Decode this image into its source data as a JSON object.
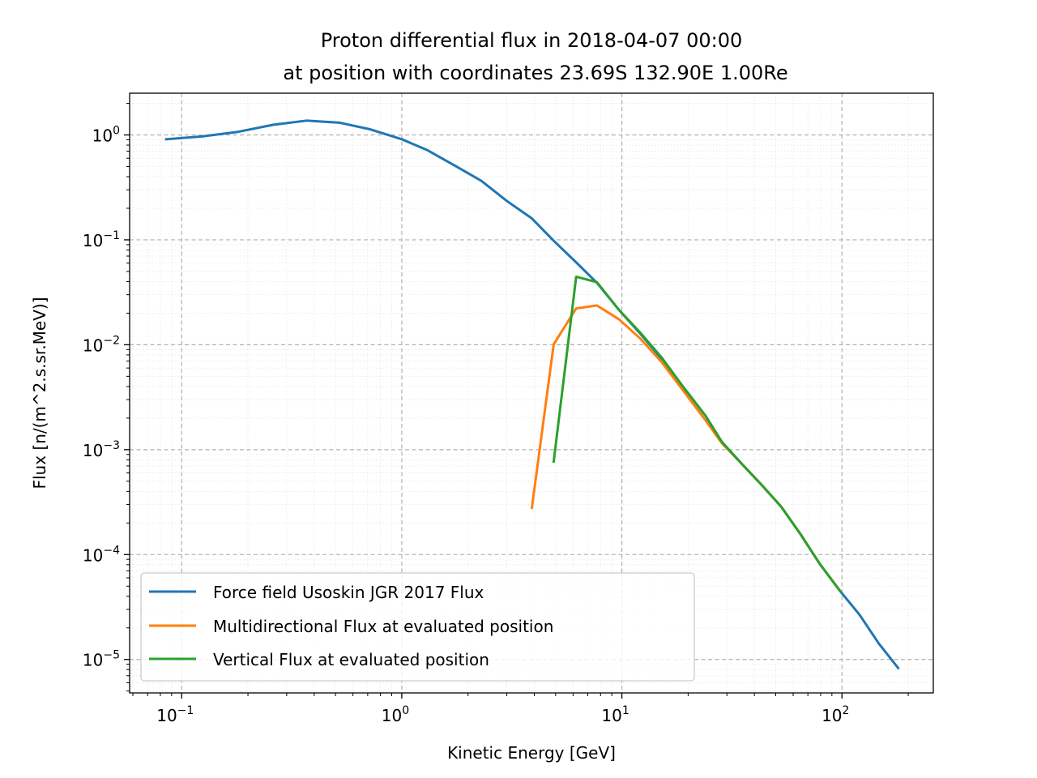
{
  "chart_data": {
    "type": "line",
    "title_lines": [
      "Proton differential flux in 2018-04-07 00:00",
      "at position with coordinates 23.69S 132.90E 1.00Re"
    ],
    "xlabel": "Kinetic Energy [GeV]",
    "ylabel": "Flux [n/(m^2.s.sr.MeV)]",
    "xscale": "log",
    "yscale": "log",
    "xlim": [
      0.058,
      260
    ],
    "ylim": [
      4.8e-06,
      2.5
    ],
    "x_ticks": [
      {
        "value": 0.1,
        "base": "10",
        "exp": "−1"
      },
      {
        "value": 1,
        "base": "10",
        "exp": "0"
      },
      {
        "value": 10,
        "base": "10",
        "exp": "1"
      },
      {
        "value": 100,
        "base": "10",
        "exp": "2"
      }
    ],
    "y_ticks": [
      {
        "value": 1,
        "base": "10",
        "exp": "0"
      },
      {
        "value": 0.1,
        "base": "10",
        "exp": "−1"
      },
      {
        "value": 0.01,
        "base": "10",
        "exp": "−2"
      },
      {
        "value": 0.001,
        "base": "10",
        "exp": "−3"
      },
      {
        "value": 0.0001,
        "base": "10",
        "exp": "−4"
      },
      {
        "value": 1e-05,
        "base": "10",
        "exp": "−5"
      }
    ],
    "grid": true,
    "legend_position": "lower-left",
    "series": [
      {
        "name": "Force field Usoskin JGR 2017 Flux",
        "color": "#1f77b4",
        "points": [
          [
            0.085,
            0.91
          ],
          [
            0.125,
            0.97
          ],
          [
            0.18,
            1.07
          ],
          [
            0.26,
            1.25
          ],
          [
            0.37,
            1.37
          ],
          [
            0.52,
            1.31
          ],
          [
            0.72,
            1.13
          ],
          [
            1.0,
            0.91
          ],
          [
            1.3,
            0.72
          ],
          [
            1.8,
            0.49
          ],
          [
            2.3,
            0.365
          ],
          [
            3.0,
            0.235
          ],
          [
            3.9,
            0.16
          ],
          [
            4.9,
            0.098
          ],
          [
            6.2,
            0.061
          ],
          [
            7.7,
            0.039
          ],
          [
            9.7,
            0.0215
          ],
          [
            12.1,
            0.0128
          ],
          [
            15.2,
            0.0073
          ],
          [
            19.1,
            0.0039
          ],
          [
            24.0,
            0.0021
          ],
          [
            28.5,
            0.00118
          ],
          [
            35.1,
            0.00073
          ],
          [
            43.2,
            0.00046
          ],
          [
            53.0,
            0.000285
          ],
          [
            65.0,
            0.000155
          ],
          [
            79.5,
            8.08e-05
          ],
          [
            98.0,
            4.5e-05
          ],
          [
            120.0,
            2.68e-05
          ],
          [
            147.0,
            1.42e-05
          ],
          [
            180.0,
            8.3e-06
          ]
        ]
      },
      {
        "name": "Multidirectional Flux at evaluated position",
        "color": "#ff7f0e",
        "points": [
          [
            3.9,
            0.00028
          ],
          [
            4.9,
            0.0101
          ],
          [
            6.2,
            0.0222
          ],
          [
            7.7,
            0.0237
          ],
          [
            9.7,
            0.0175
          ],
          [
            12.1,
            0.0115
          ],
          [
            15.2,
            0.0068
          ],
          [
            19.1,
            0.0036
          ],
          [
            24.0,
            0.0019
          ],
          [
            28.5,
            0.00115
          ],
          [
            35.1,
            0.00073
          ],
          [
            43.2,
            0.00046
          ],
          [
            53.0,
            0.000285
          ],
          [
            65.0,
            0.000155
          ],
          [
            79.5,
            8.08e-05
          ],
          [
            98.0,
            4.5e-05
          ]
        ]
      },
      {
        "name": "Vertical Flux at evaluated position",
        "color": "#2ca02c",
        "points": [
          [
            4.9,
            0.00077
          ],
          [
            6.2,
            0.0445
          ],
          [
            7.7,
            0.0395
          ],
          [
            9.7,
            0.0215
          ],
          [
            12.1,
            0.0131
          ],
          [
            15.2,
            0.0075
          ],
          [
            19.1,
            0.0039
          ],
          [
            24.0,
            0.0021
          ],
          [
            28.5,
            0.00118
          ],
          [
            35.1,
            0.00073
          ],
          [
            43.2,
            0.00046
          ],
          [
            53.0,
            0.000285
          ],
          [
            65.0,
            0.000155
          ],
          [
            79.5,
            8.08e-05
          ],
          [
            98.0,
            4.5e-05
          ]
        ]
      }
    ]
  }
}
